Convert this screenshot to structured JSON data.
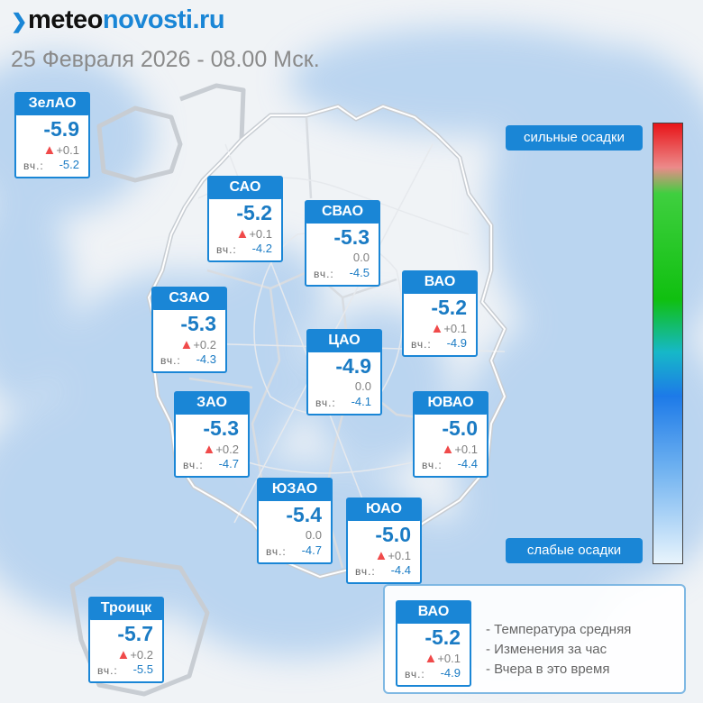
{
  "header": {
    "logo_part1": "meteo",
    "logo_part2": "novosti.ru",
    "date": "25 Февраля 2026 - 08.00 Мск."
  },
  "scale": {
    "top_label": "сильные осадки",
    "bottom_label": "слабые осадки",
    "colors": [
      "#e81418",
      "#10c010",
      "#1d7ae8",
      "#e8f4fc"
    ]
  },
  "labels": {
    "yesterday": "вч.:"
  },
  "districts": [
    {
      "name": "ЗелАО",
      "temp": "-5.9",
      "change": "+0.1",
      "trend": "up",
      "yesterday": "-5.2"
    },
    {
      "name": "САО",
      "temp": "-5.2",
      "change": "+0.1",
      "trend": "up",
      "yesterday": "-4.2"
    },
    {
      "name": "СВАО",
      "temp": "-5.3",
      "change": "0.0",
      "trend": "none",
      "yesterday": "-4.5"
    },
    {
      "name": "ВАО",
      "temp": "-5.2",
      "change": "+0.1",
      "trend": "up",
      "yesterday": "-4.9"
    },
    {
      "name": "СЗАО",
      "temp": "-5.3",
      "change": "+0.2",
      "trend": "up",
      "yesterday": "-4.3"
    },
    {
      "name": "ЦАО",
      "temp": "-4.9",
      "change": "0.0",
      "trend": "none",
      "yesterday": "-4.1"
    },
    {
      "name": "ЗАО",
      "temp": "-5.3",
      "change": "+0.2",
      "trend": "up",
      "yesterday": "-4.7"
    },
    {
      "name": "ЮВАО",
      "temp": "-5.0",
      "change": "+0.1",
      "trend": "up",
      "yesterday": "-4.4"
    },
    {
      "name": "ЮЗАО",
      "temp": "-5.4",
      "change": "0.0",
      "trend": "none",
      "yesterday": "-4.7"
    },
    {
      "name": "ЮАО",
      "temp": "-5.0",
      "change": "+0.1",
      "trend": "up",
      "yesterday": "-4.4"
    },
    {
      "name": "Троицк",
      "temp": "-5.7",
      "change": "+0.2",
      "trend": "up",
      "yesterday": "-5.5"
    }
  ],
  "legend": {
    "sample": {
      "name": "ВАО",
      "temp": "-5.2",
      "change": "+0.1",
      "yesterday": "-4.9"
    },
    "items": [
      "- Температура средняя",
      "- Изменения за час",
      "- Вчера в это время"
    ]
  }
}
